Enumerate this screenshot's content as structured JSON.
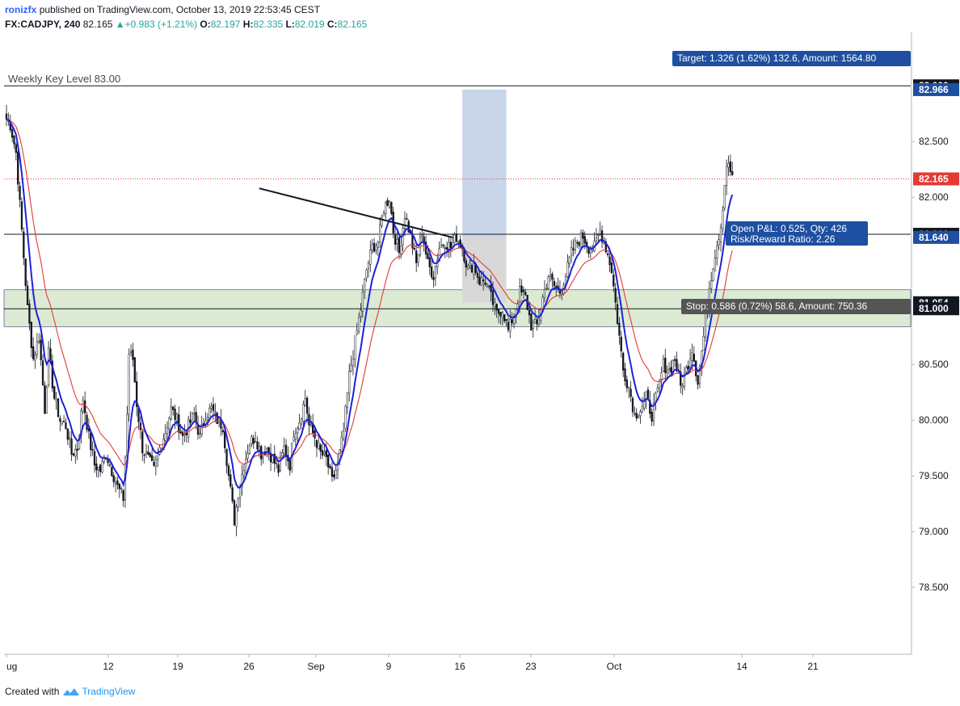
{
  "header": {
    "user": "ronizfx",
    "published": "published on TradingView.com, October 13, 2019 22:53:45 CEST",
    "symbol": "FX:CADJPY, 240",
    "last": "82.165",
    "change": "+0.983 (+1.21%)",
    "o_label": "O:",
    "o": "82.197",
    "h_label": "H:",
    "h": "82.335",
    "l_label": "L:",
    "l": "82.019",
    "c_label": "C:",
    "c": "82.165"
  },
  "footer": {
    "created_with": "Created with",
    "brand": "TradingView",
    "logo_icon": "tradingview-logo-icon"
  },
  "colors": {
    "up": "#ffffff",
    "down": "#131722",
    "ema_fast": "#1e22d6",
    "ema_slow": "#e53935",
    "zone": "#dcead4",
    "target_box": "#c9d6ea",
    "stop_box": "#d8d8d8",
    "badge_blue": "#1e4fa0",
    "badge_gray": "#555555",
    "price_line": "#e53935"
  },
  "chart_data": {
    "type": "candlestick",
    "symbol": "FX:CADJPY",
    "timeframe": "240",
    "x_ticks": [
      "ug",
      "12",
      "19",
      "26",
      "Sep",
      "9",
      "16",
      "23",
      "Oct",
      "14",
      "21"
    ],
    "y_ticks": [
      "83.000",
      "82.966",
      "82.500",
      "82.165",
      "82.000",
      "81.668",
      "81.640",
      "81.054",
      "81.000",
      "80.500",
      "80.000",
      "79.500",
      "79.000",
      "78.500"
    ],
    "ylim": [
      77.9,
      83.48
    ],
    "price_scale_labels": [
      {
        "value": 83.0,
        "text": "83.000",
        "style": "dark"
      },
      {
        "value": 82.966,
        "text": "82.966",
        "style": "blue"
      },
      {
        "value": 82.5,
        "text": "82.500",
        "style": "plain"
      },
      {
        "value": 82.165,
        "text": "82.165",
        "style": "red"
      },
      {
        "value": 82.0,
        "text": "82.000",
        "style": "plain"
      },
      {
        "value": 81.668,
        "text": "81.668",
        "style": "dark"
      },
      {
        "value": 81.64,
        "text": "81.640",
        "style": "blue"
      },
      {
        "value": 81.054,
        "text": "81.054",
        "style": "dark"
      },
      {
        "value": 81.0,
        "text": "81.000",
        "style": "dark"
      },
      {
        "value": 80.5,
        "text": "80.500",
        "style": "plain"
      },
      {
        "value": 80.0,
        "text": "80.000",
        "style": "plain"
      },
      {
        "value": 79.5,
        "text": "79.500",
        "style": "plain"
      },
      {
        "value": 79.0,
        "text": "79.000",
        "style": "plain"
      },
      {
        "value": 78.5,
        "text": "78.500",
        "style": "plain"
      }
    ],
    "horizontal_levels": [
      {
        "value": 83.0,
        "label": "Weekly Key Level 83.00"
      },
      {
        "value": 81.668,
        "label": ""
      },
      {
        "value": 81.0,
        "label": ""
      }
    ],
    "zone": {
      "top": 81.17,
      "bottom": 80.84
    },
    "trendline": {
      "from": {
        "bar": 132,
        "value": 82.08
      },
      "to": {
        "bar": 233,
        "value": 81.64
      }
    },
    "position": {
      "entry": 81.64,
      "target": 82.966,
      "stop": 81.054,
      "start_bar": 238,
      "end_bar": 261,
      "target_text": "Target: 1.326 (1.62%) 132.6, Amount: 1564.80",
      "stop_text": "Stop: 0.586 (0.72%) 58.6, Amount: 750.36",
      "pnl_text": "Open P&L: 0.525, Qty: 426",
      "rr_text": "Risk/Reward Ratio: 2.26"
    },
    "last_price": 82.165,
    "path_points": [
      [
        0,
        82.7
      ],
      [
        2,
        82.65
      ],
      [
        5,
        82.4
      ],
      [
        8,
        81.7
      ],
      [
        11,
        81.0
      ],
      [
        14,
        80.55
      ],
      [
        17,
        80.75
      ],
      [
        20,
        80.1
      ],
      [
        22,
        80.6
      ],
      [
        25,
        80.2
      ],
      [
        28,
        80.0
      ],
      [
        31,
        79.95
      ],
      [
        34,
        79.7
      ],
      [
        37,
        79.75
      ],
      [
        40,
        80.2
      ],
      [
        43,
        79.85
      ],
      [
        46,
        79.6
      ],
      [
        49,
        79.55
      ],
      [
        52,
        79.7
      ],
      [
        55,
        79.55
      ],
      [
        58,
        79.4
      ],
      [
        61,
        79.3
      ],
      [
        63,
        80.05
      ],
      [
        64,
        80.6
      ],
      [
        66,
        80.55
      ],
      [
        68,
        80.15
      ],
      [
        71,
        79.75
      ],
      [
        74,
        79.65
      ],
      [
        77,
        79.55
      ],
      [
        80,
        79.75
      ],
      [
        83,
        79.9
      ],
      [
        86,
        80.1
      ],
      [
        89,
        80.0
      ],
      [
        92,
        79.85
      ],
      [
        95,
        79.95
      ],
      [
        98,
        80.05
      ],
      [
        101,
        79.85
      ],
      [
        104,
        80.05
      ],
      [
        107,
        80.1
      ],
      [
        110,
        80.0
      ],
      [
        113,
        79.95
      ],
      [
        116,
        79.5
      ],
      [
        119,
        79.1
      ],
      [
        121,
        79.35
      ],
      [
        124,
        79.6
      ],
      [
        127,
        79.8
      ],
      [
        130,
        79.85
      ],
      [
        133,
        79.7
      ],
      [
        136,
        79.75
      ],
      [
        139,
        79.65
      ],
      [
        142,
        79.55
      ],
      [
        145,
        79.75
      ],
      [
        148,
        79.6
      ],
      [
        150,
        79.9
      ],
      [
        153,
        80.0
      ],
      [
        156,
        80.2
      ],
      [
        158,
        79.95
      ],
      [
        161,
        79.85
      ],
      [
        164,
        79.7
      ],
      [
        167,
        79.65
      ],
      [
        170,
        79.45
      ],
      [
        173,
        79.6
      ],
      [
        176,
        79.9
      ],
      [
        179,
        80.4
      ],
      [
        182,
        80.7
      ],
      [
        185,
        81.0
      ],
      [
        188,
        81.35
      ],
      [
        191,
        81.55
      ],
      [
        194,
        81.6
      ],
      [
        197,
        81.9
      ],
      [
        200,
        82.0
      ],
      [
        202,
        81.7
      ],
      [
        205,
        81.5
      ],
      [
        208,
        81.85
      ],
      [
        211,
        81.65
      ],
      [
        214,
        81.4
      ],
      [
        217,
        81.7
      ],
      [
        220,
        81.4
      ],
      [
        223,
        81.3
      ],
      [
        226,
        81.55
      ],
      [
        229,
        81.6
      ],
      [
        232,
        81.55
      ],
      [
        235,
        81.65
      ],
      [
        238,
        81.55
      ],
      [
        241,
        81.35
      ],
      [
        244,
        81.4
      ],
      [
        247,
        81.25
      ],
      [
        250,
        81.25
      ],
      [
        253,
        81.1
      ],
      [
        256,
        80.95
      ],
      [
        259,
        81.0
      ],
      [
        262,
        80.8
      ],
      [
        265,
        80.95
      ],
      [
        268,
        81.15
      ],
      [
        271,
        81.1
      ],
      [
        274,
        80.85
      ],
      [
        277,
        80.85
      ],
      [
        280,
        81.1
      ],
      [
        283,
        81.3
      ],
      [
        286,
        81.2
      ],
      [
        289,
        81.15
      ],
      [
        292,
        81.3
      ],
      [
        295,
        81.5
      ],
      [
        298,
        81.6
      ],
      [
        301,
        81.65
      ],
      [
        304,
        81.55
      ],
      [
        307,
        81.55
      ],
      [
        310,
        81.7
      ],
      [
        313,
        81.55
      ],
      [
        316,
        81.35
      ],
      [
        319,
        80.9
      ],
      [
        322,
        80.45
      ],
      [
        325,
        80.3
      ],
      [
        328,
        80.05
      ],
      [
        331,
        80.1
      ],
      [
        334,
        80.2
      ],
      [
        337,
        80.05
      ],
      [
        340,
        80.25
      ],
      [
        343,
        80.5
      ],
      [
        346,
        80.45
      ],
      [
        349,
        80.55
      ],
      [
        352,
        80.3
      ],
      [
        355,
        80.45
      ],
      [
        358,
        80.65
      ],
      [
        361,
        80.35
      ],
      [
        364,
        80.75
      ],
      [
        367,
        81.2
      ],
      [
        370,
        81.5
      ],
      [
        373,
        81.75
      ],
      [
        376,
        82.3
      ],
      [
        379,
        82.2
      ]
    ]
  }
}
